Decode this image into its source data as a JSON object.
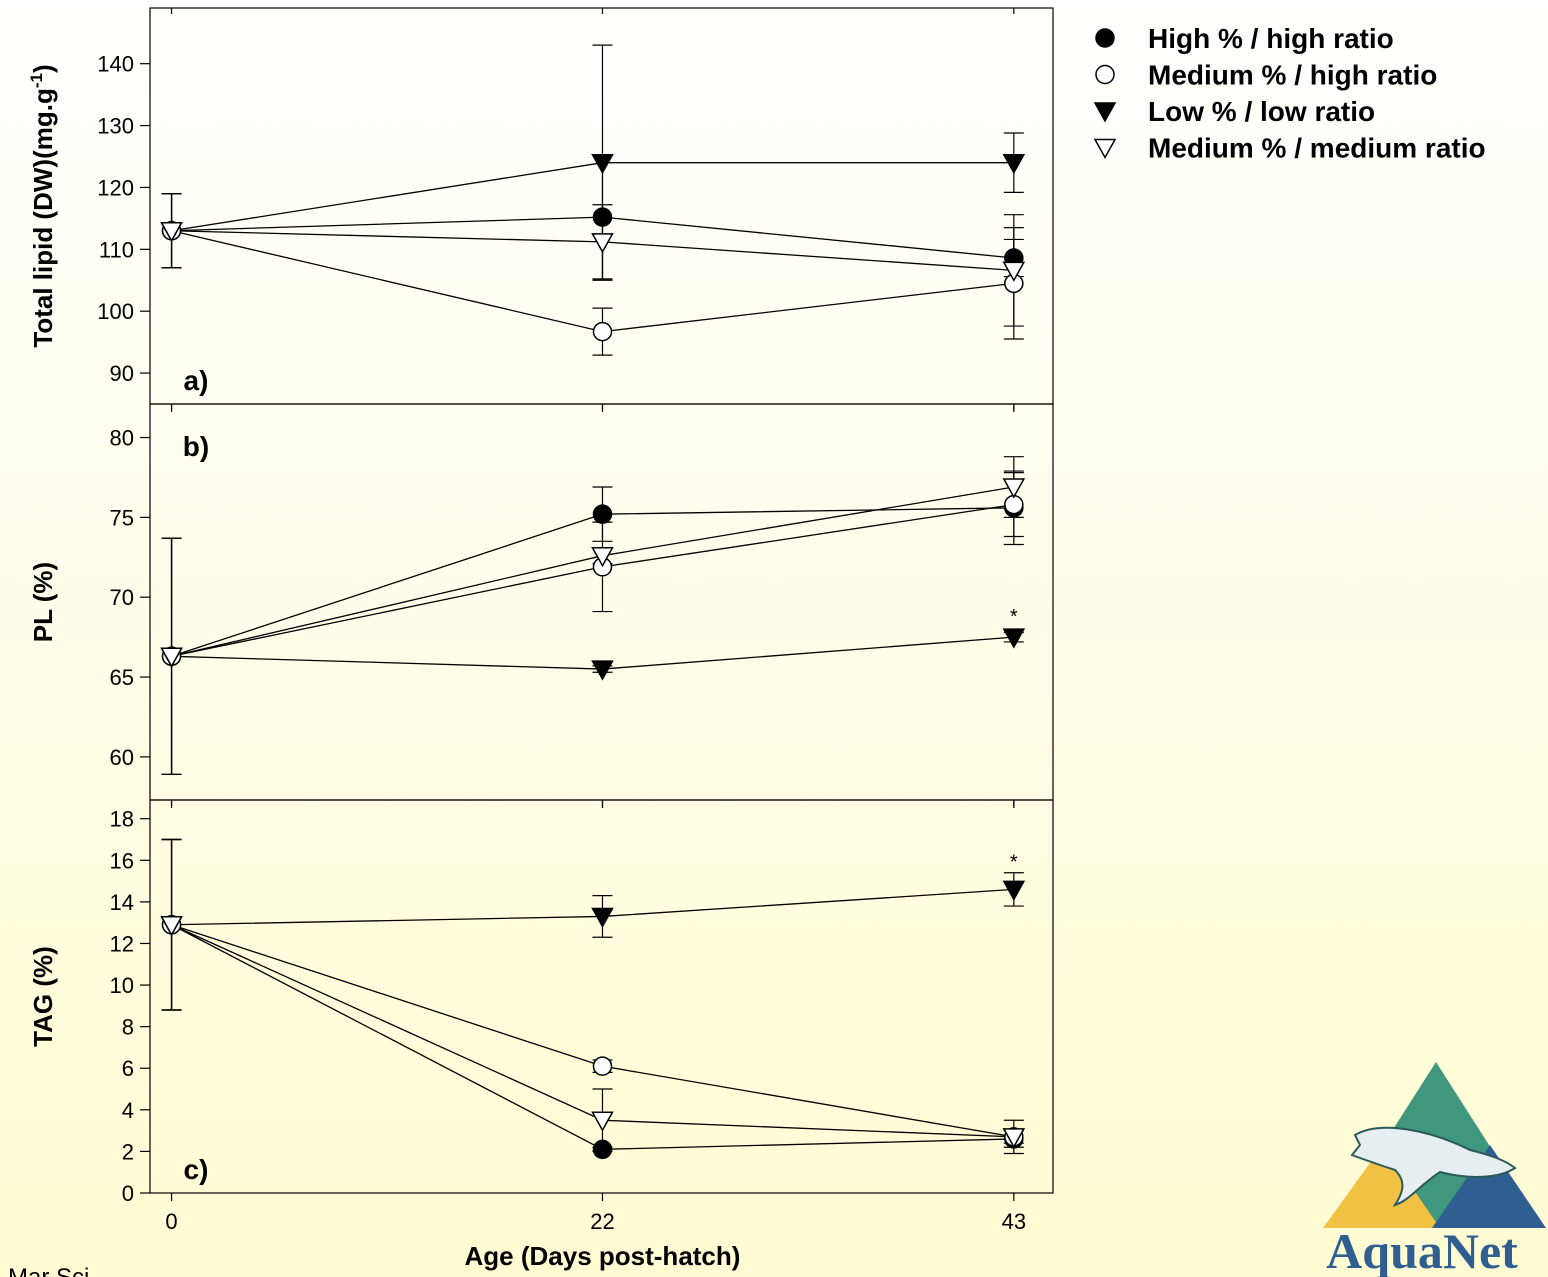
{
  "chart_data": [
    {
      "type": "line",
      "panel_label": "a)",
      "ylabel": "Total lipid (DW)(mg.g",
      "ylabel_sup": "-1",
      "ylabel_end": ")",
      "x": [
        0,
        22,
        43
      ],
      "xlim": [
        -1.1,
        45
      ],
      "xticks": [
        0,
        22,
        43
      ],
      "ylim": [
        85,
        149
      ],
      "yticks": [
        90,
        100,
        110,
        120,
        130,
        140
      ],
      "series": [
        {
          "name": "High % / high ratio",
          "color": "#000000",
          "marker": "circle-filled",
          "values": [
            113,
            115.2,
            108.6
          ],
          "errors": [
            6,
            10,
            3
          ]
        },
        {
          "name": "Medium % / high ratio",
          "color": "#000000",
          "marker": "circle-open",
          "values": [
            113,
            96.7,
            104.5
          ],
          "errors": [
            6,
            3.8,
            9
          ]
        },
        {
          "name": "Low % / low ratio",
          "color": "#000000",
          "marker": "triangle-down-filled",
          "values": [
            113,
            124,
            124
          ],
          "errors": [
            6,
            19,
            4.8
          ]
        },
        {
          "name": "Medium % / medium ratio",
          "color": "#000000",
          "marker": "triangle-down-open",
          "values": [
            113,
            111.2,
            106.6
          ],
          "errors": [
            6,
            6,
            9
          ]
        }
      ]
    },
    {
      "type": "line",
      "panel_label": "b)",
      "ylabel": "PL (%)",
      "x": [
        0,
        22,
        43
      ],
      "xlim": [
        -1.1,
        45
      ],
      "xticks": [
        0,
        22,
        43
      ],
      "ylim": [
        57.3,
        82.1
      ],
      "yticks": [
        60,
        65,
        70,
        75,
        80
      ],
      "annotations": [
        {
          "text": "*",
          "x": 43,
          "y": 68.9
        }
      ],
      "series": [
        {
          "name": "High % / high ratio",
          "color": "#000000",
          "marker": "circle-filled",
          "values": [
            66.3,
            75.2,
            75.6
          ],
          "errors": [
            7.4,
            1.7,
            2.3
          ]
        },
        {
          "name": "Medium % / high ratio",
          "color": "#000000",
          "marker": "circle-open",
          "values": [
            66.3,
            71.9,
            75.8
          ],
          "errors": [
            7.4,
            2.8,
            2
          ]
        },
        {
          "name": "Low % / low ratio",
          "color": "#000000",
          "marker": "triangle-down-filled",
          "values": [
            66.3,
            65.5,
            67.5
          ],
          "errors": [
            7.4,
            0.2,
            0.3
          ]
        },
        {
          "name": "Medium % / medium ratio",
          "color": "#000000",
          "marker": "triangle-down-open",
          "values": [
            66.3,
            72.6,
            76.9
          ],
          "errors": [
            7.4,
            0.5,
            1.9
          ]
        }
      ]
    },
    {
      "type": "line",
      "panel_label": "c)",
      "ylabel": "TAG (%)",
      "xlabel": "Age (Days post-hatch)",
      "xtick_labels": true,
      "x": [
        0,
        22,
        43
      ],
      "xlim": [
        -1.1,
        45
      ],
      "xticks": [
        0,
        22,
        43
      ],
      "ylim": [
        0,
        18.9
      ],
      "yticks": [
        0,
        2,
        4,
        6,
        8,
        10,
        12,
        14,
        16,
        18
      ],
      "annotations": [
        {
          "text": "*",
          "x": 43,
          "y": 16.0
        }
      ],
      "series": [
        {
          "name": "High % / high ratio",
          "color": "#000000",
          "marker": "circle-filled",
          "values": [
            12.9,
            2.1,
            2.6
          ],
          "errors": [
            4.1,
            0.1,
            0.4
          ]
        },
        {
          "name": "Medium % / high ratio",
          "color": "#000000",
          "marker": "circle-open",
          "values": [
            12.9,
            6.1,
            2.7
          ],
          "errors": [
            4.1,
            0.3,
            0.3
          ]
        },
        {
          "name": "Low % / low ratio",
          "color": "#000000",
          "marker": "triangle-down-filled",
          "values": [
            12.9,
            13.3,
            14.6
          ],
          "errors": [
            4.1,
            1,
            0.8
          ]
        },
        {
          "name": "Medium % / medium ratio",
          "color": "#000000",
          "marker": "triangle-down-open",
          "values": [
            12.9,
            3.5,
            2.7
          ],
          "errors": [
            4.1,
            1.5,
            0.8
          ]
        }
      ]
    }
  ],
  "footer": "Mar Sci",
  "logo": "AquaNet"
}
